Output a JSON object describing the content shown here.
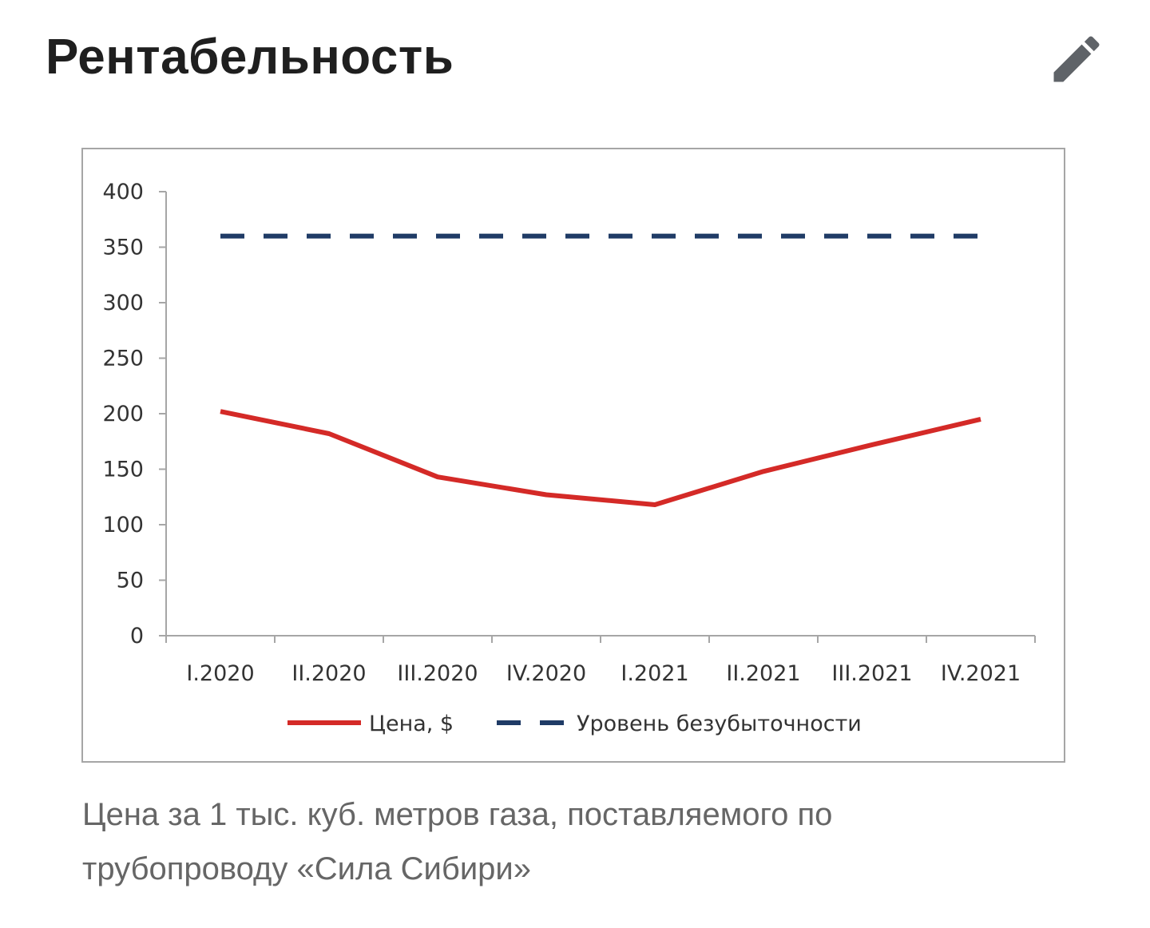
{
  "header": {
    "title": "Рентабельность",
    "edit_icon": "pencil-icon"
  },
  "colors": {
    "price": "#d42a27",
    "breakeven": "#1f3b66",
    "axis": "#a6a6a6",
    "frame": "#a6a6a6"
  },
  "chart_data": {
    "type": "line",
    "categories": [
      "I.2020",
      "II.2020",
      "III.2020",
      "IV.2020",
      "I.2021",
      "II.2021",
      "III.2021",
      "IV.2021"
    ],
    "series": [
      {
        "name": "Цена, $",
        "values": [
          202,
          182,
          143,
          127,
          118,
          148,
          172,
          195
        ],
        "color": "#d42a27",
        "style": "solid"
      },
      {
        "name": "Уровень безубыточности",
        "values": [
          360,
          360,
          360,
          360,
          360,
          360,
          360,
          360
        ],
        "color": "#1f3b66",
        "style": "dashed"
      }
    ],
    "ylim": [
      0,
      400
    ],
    "yticks": [
      0,
      50,
      100,
      150,
      200,
      250,
      300,
      350,
      400
    ],
    "legend_position": "bottom",
    "grid": false
  },
  "caption": "Цена за 1 тыс. куб. метров газа, поставляемого по трубопроводу «Сила Сибири»"
}
